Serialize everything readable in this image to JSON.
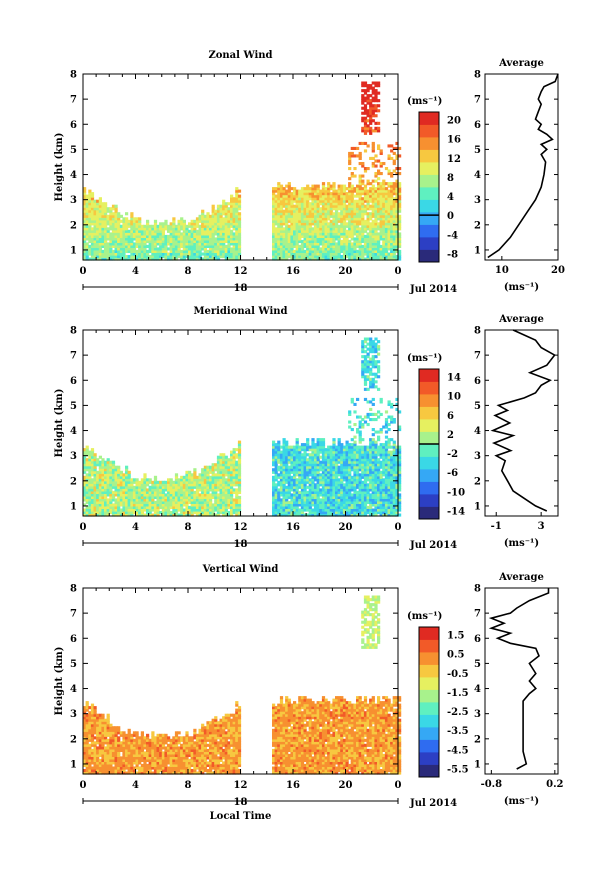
{
  "chart_data": [
    {
      "type": "heatmap",
      "title": "Zonal Wind",
      "ylabel": "Height (km)",
      "unit_label": "(ms⁻¹)",
      "date_label": "Jul 2014",
      "day_label": "18",
      "xticks": [
        "0",
        "4",
        "8",
        "12",
        "16",
        "20",
        "0"
      ],
      "xlim": [
        0,
        24
      ],
      "yticks": [
        "1",
        "2",
        "3",
        "4",
        "5",
        "6",
        "7",
        "8"
      ],
      "ylim": [
        0.6,
        8
      ],
      "data_gap_hours": [
        12.1,
        14.3
      ],
      "colorbar_ticks": [
        "20",
        "16",
        "12",
        "8",
        "4",
        "0",
        "-4",
        "-8"
      ],
      "colorbar_range": [
        -10,
        22
      ],
      "zero_contour": 0,
      "colorscale": [
        "#2a2a7a",
        "#2c3fc4",
        "#2f6cf0",
        "#35a8f5",
        "#3ad8e6",
        "#5ff0c0",
        "#a8f28c",
        "#e6f060",
        "#f7c840",
        "#f79030",
        "#f25a28",
        "#e02a22"
      ],
      "average_profile": {
        "title": "Average",
        "xlabel": "(ms⁻¹)",
        "xticks": [
          "10",
          "20"
        ],
        "xlim": [
          7,
          20
        ],
        "height_km": [
          0.7,
          1.0,
          1.5,
          2.0,
          2.5,
          3.0,
          3.5,
          4.0,
          4.5,
          4.8,
          5.0,
          5.2,
          5.4,
          5.6,
          5.8,
          6.0,
          6.2,
          6.5,
          6.8,
          7.0,
          7.3,
          7.5,
          7.7,
          8.0
        ],
        "value": [
          7.5,
          9.5,
          11.5,
          13.0,
          14.5,
          16.0,
          17.0,
          17.5,
          17.8,
          17.0,
          18.0,
          17.0,
          19.0,
          18.0,
          16.5,
          17.0,
          16.0,
          16.5,
          17.0,
          16.5,
          17.0,
          17.5,
          19.5,
          20.0
        ]
      }
    },
    {
      "type": "heatmap",
      "title": "Meridional Wind",
      "ylabel": "Height (km)",
      "unit_label": "(ms⁻¹)",
      "date_label": "Jul 2014",
      "day_label": "18",
      "xticks": [
        "0",
        "4",
        "8",
        "12",
        "16",
        "20",
        "0"
      ],
      "xlim": [
        0,
        24
      ],
      "yticks": [
        "1",
        "2",
        "3",
        "4",
        "5",
        "6",
        "7",
        "8"
      ],
      "ylim": [
        0.6,
        8
      ],
      "data_gap_hours": [
        12.1,
        14.3
      ],
      "colorbar_ticks": [
        "14",
        "10",
        "6",
        "2",
        "-2",
        "-6",
        "-10",
        "-14"
      ],
      "colorbar_range": [
        -16,
        16
      ],
      "zero_contour": 0,
      "colorscale": [
        "#2a2a7a",
        "#2c3fc4",
        "#2f6cf0",
        "#35a8f5",
        "#3ad8e6",
        "#5ff0c0",
        "#a8f28c",
        "#e6f060",
        "#f7c840",
        "#f79030",
        "#f25a28",
        "#e02a22"
      ],
      "average_profile": {
        "title": "Average",
        "xlabel": "(ms⁻¹)",
        "xticks": [
          "-1",
          "3"
        ],
        "xlim": [
          -2,
          4.5
        ],
        "height_km": [
          0.8,
          1.0,
          1.3,
          1.6,
          2.0,
          2.4,
          2.8,
          3.0,
          3.2,
          3.5,
          3.8,
          4.0,
          4.3,
          4.6,
          4.8,
          5.0,
          5.3,
          5.5,
          5.8,
          6.0,
          6.3,
          6.6,
          7.0,
          7.3,
          7.6,
          8.0
        ],
        "value": [
          3.5,
          2.5,
          1.5,
          0.5,
          0.0,
          -0.5,
          -0.2,
          -1.0,
          0.3,
          -1.2,
          0.5,
          -1.3,
          0.2,
          -1.1,
          0.0,
          -0.8,
          1.5,
          2.5,
          3.0,
          3.8,
          2.0,
          3.5,
          4.2,
          3.0,
          2.5,
          0.5
        ]
      }
    },
    {
      "type": "heatmap",
      "title": "Vertical Wind",
      "ylabel": "Height (km)",
      "xlabel": "Local Time",
      "unit_label": "(ms⁻¹)",
      "date_label": "Jul 2014",
      "day_label": "18",
      "xticks": [
        "0",
        "4",
        "8",
        "12",
        "16",
        "20",
        "0"
      ],
      "xlim": [
        0,
        24
      ],
      "yticks": [
        "1",
        "2",
        "3",
        "4",
        "5",
        "6",
        "7",
        "8"
      ],
      "ylim": [
        0.6,
        8
      ],
      "data_gap_hours": [
        12.1,
        14.3
      ],
      "colorbar_ticks": [
        "1.5",
        "0.5",
        "-0.5",
        "-1.5",
        "-2.5",
        "-3.5",
        "-4.5",
        "-5.5"
      ],
      "colorbar_range": [
        -6,
        2
      ],
      "colorscale": [
        "#2a2a7a",
        "#2c3fc4",
        "#2f6cf0",
        "#35a8f5",
        "#3ad8e6",
        "#5ff0c0",
        "#a8f28c",
        "#e6f060",
        "#f7c840",
        "#f79030",
        "#f25a28",
        "#e02a22"
      ],
      "average_profile": {
        "title": "Average",
        "xlabel": "(ms⁻¹)",
        "xticks": [
          "-0.8",
          "0.2"
        ],
        "xlim": [
          -0.9,
          0.25
        ],
        "height_km": [
          0.8,
          1.0,
          1.5,
          2.0,
          2.5,
          3.0,
          3.5,
          3.8,
          4.0,
          4.3,
          4.6,
          5.0,
          5.3,
          5.6,
          5.8,
          6.0,
          6.2,
          6.4,
          6.6,
          6.8,
          7.0,
          7.2,
          7.5,
          7.8,
          8.0
        ],
        "value": [
          -0.4,
          -0.25,
          -0.3,
          -0.3,
          -0.3,
          -0.3,
          -0.3,
          -0.2,
          -0.1,
          -0.2,
          -0.1,
          -0.2,
          -0.05,
          -0.1,
          -0.5,
          -0.7,
          -0.5,
          -0.8,
          -0.6,
          -0.8,
          -0.5,
          -0.4,
          -0.2,
          0.1,
          0.1
        ]
      }
    }
  ]
}
